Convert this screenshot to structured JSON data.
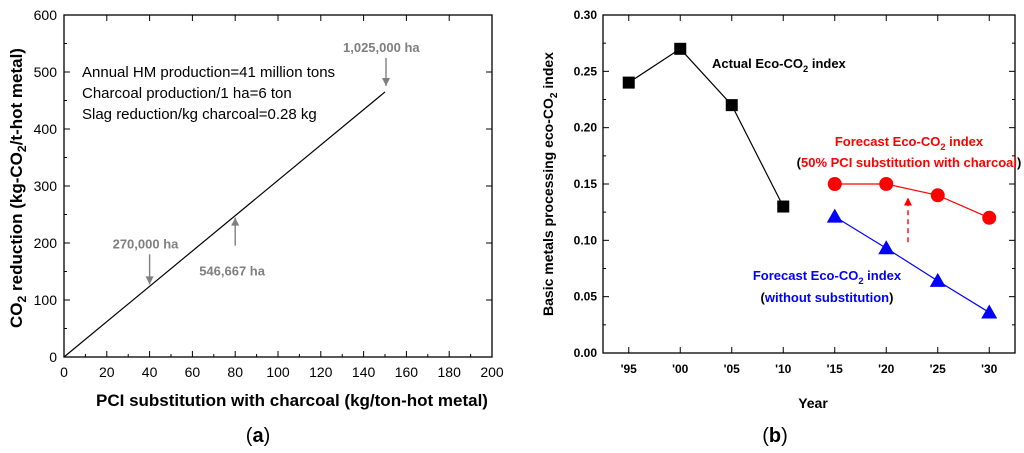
{
  "chart_data": [
    {
      "type": "line",
      "panel_label": "a",
      "xlabel": "PCI substitution with charcoal (kg/ton-hot metal)",
      "ylabel_parts": [
        "CO",
        "2",
        " reduction (kg-CO",
        "2",
        "/t-hot metal)"
      ],
      "xlim": [
        0,
        200
      ],
      "ylim": [
        0,
        600
      ],
      "xticks": [
        0,
        20,
        40,
        60,
        80,
        100,
        120,
        140,
        160,
        180,
        200
      ],
      "yticks": [
        0,
        100,
        200,
        300,
        400,
        500,
        600
      ],
      "series": [
        {
          "x": [
            0,
            150
          ],
          "y": [
            0,
            465
          ],
          "color": "#000000"
        }
      ],
      "notes": [
        "Annual HM production=41 million tons",
        "Charcoal production/1 ha=6 ton",
        "Slag reduction/kg charcoal=0.28 kg"
      ],
      "annotations": [
        {
          "label": "270,000 ha",
          "x": 40,
          "y": 124,
          "color": "#7f7f7f"
        },
        {
          "label": "546,667 ha",
          "x": 80,
          "y": 248,
          "color": "#7f7f7f"
        },
        {
          "label": "1,025,000 ha",
          "x": 150,
          "y": 465,
          "color": "#7f7f7f"
        }
      ],
      "grid": false
    },
    {
      "type": "line",
      "panel_label": "b",
      "xlabel": "Year",
      "ylabel_parts": [
        "Basic metals processing eco-CO",
        "2",
        " index"
      ],
      "categories": [
        "'95",
        "'00",
        "'05",
        "'10",
        "'15",
        "'20",
        "'25",
        "'30"
      ],
      "ylim": [
        0,
        0.3
      ],
      "yticks": [
        "0.00",
        "0.05",
        "0.10",
        "0.15",
        "0.20",
        "0.25",
        "0.30"
      ],
      "series": [
        {
          "label_parts": [
            "Actual Eco-CO",
            "2",
            " index"
          ],
          "marker": "square",
          "color": "#000000",
          "x": [
            "'95",
            "'00",
            "'05",
            "'10"
          ],
          "values": [
            0.24,
            0.27,
            0.22,
            0.13
          ]
        },
        {
          "label_parts": [
            "Forecast Eco-CO",
            "2",
            " index"
          ],
          "sublabel": [
            "(",
            "50% PCI substitution with charcoal",
            ")"
          ],
          "marker": "circle",
          "color": "#ff0000",
          "x": [
            "'15",
            "'20",
            "'25",
            "'30"
          ],
          "values": [
            0.15,
            0.15,
            0.14,
            0.12
          ]
        },
        {
          "label_parts": [
            "Forecast Eco-CO",
            "2",
            " index"
          ],
          "sublabel": [
            "(",
            "without substitution",
            ")"
          ],
          "marker": "triangle",
          "color": "#0000ff",
          "x": [
            "'15",
            "'20",
            "'25",
            "'30"
          ],
          "values": [
            0.121,
            0.093,
            0.064,
            0.036
          ]
        }
      ],
      "arrow": {
        "x_between": [
          "'20",
          "'25"
        ],
        "from": 0.093,
        "to": 0.138,
        "color": "#ff0000",
        "style": "dashed"
      },
      "grid": false
    }
  ]
}
